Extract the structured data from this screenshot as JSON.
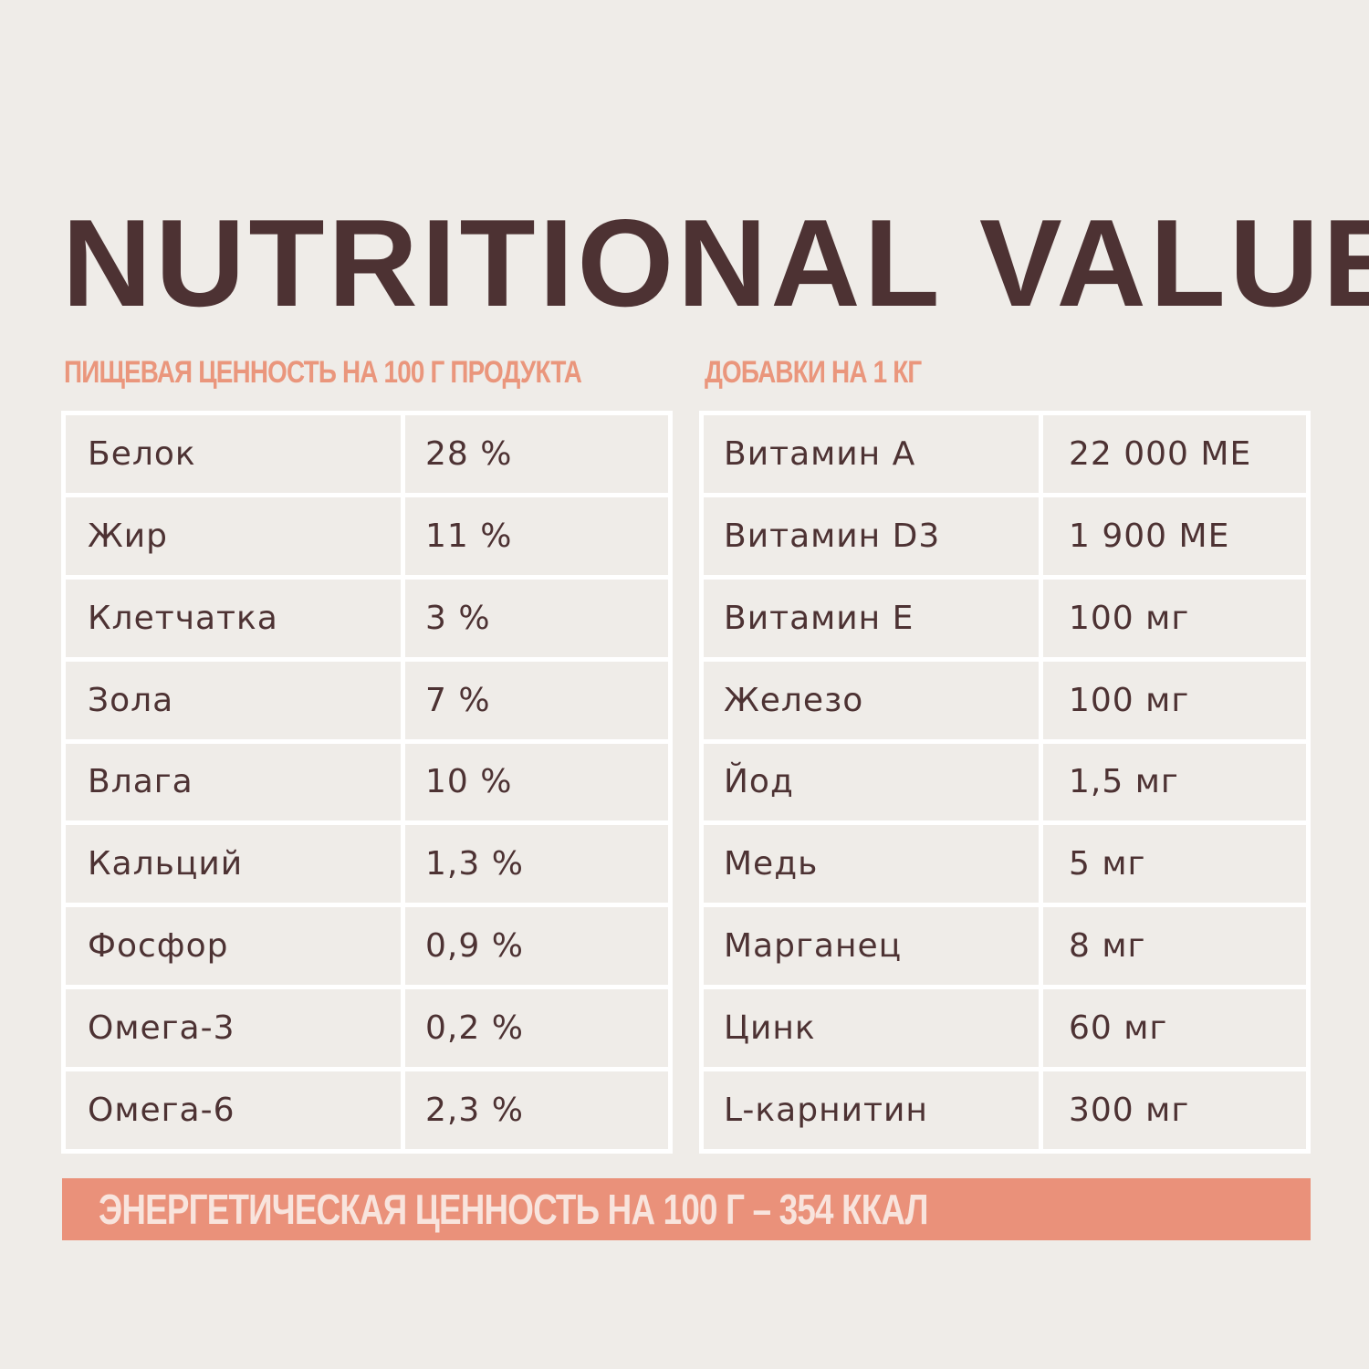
{
  "title": "NUTRITIONAL VALUE",
  "nutrition": {
    "heading": "ПИЩЕВАЯ ЦЕННОСТЬ НА 100 Г ПРОДУКТА",
    "rows": [
      {
        "name": "Белок",
        "value": "28 %"
      },
      {
        "name": "Жир",
        "value": "11 %"
      },
      {
        "name": "Клетчатка",
        "value": "3 %"
      },
      {
        "name": "Зола",
        "value": "7 %"
      },
      {
        "name": "Влага",
        "value": "10 %"
      },
      {
        "name": "Кальций",
        "value": "1,3 %"
      },
      {
        "name": "Фосфор",
        "value": "0,9 %"
      },
      {
        "name": "Омега-3",
        "value": "0,2 %"
      },
      {
        "name": "Омега-6",
        "value": "2,3 %"
      }
    ]
  },
  "additives": {
    "heading": "ДОБАВКИ НА 1 КГ",
    "rows": [
      {
        "name": "Витамин А",
        "value": "22 000 МЕ"
      },
      {
        "name": "Витамин D3",
        "value": "1 900 МЕ"
      },
      {
        "name": "Витамин Е",
        "value": "100 мг"
      },
      {
        "name": "Железо",
        "value": "100 мг"
      },
      {
        "name": "Йод",
        "value": "1,5 мг"
      },
      {
        "name": "Медь",
        "value": "5 мг"
      },
      {
        "name": "Марганец",
        "value": "8 мг"
      },
      {
        "name": "Цинк",
        "value": "60 мг"
      },
      {
        "name": "L-карнитин",
        "value": "300 мг"
      }
    ]
  },
  "energy": "ЭНЕРГЕТИЧЕСКАЯ ЦЕННОСТЬ НА 100 Г – 354 ККАЛ",
  "colors": {
    "background": "#efece8",
    "title": "#4d3233",
    "accent": "#ea917a",
    "text": "#4d3233"
  }
}
